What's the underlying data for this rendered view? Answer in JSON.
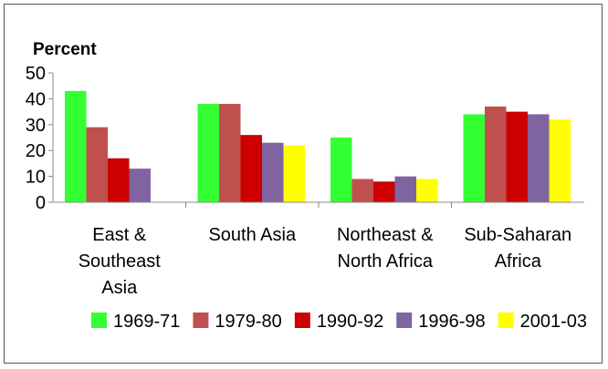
{
  "chart_data": {
    "type": "bar",
    "title": "",
    "xlabel": "",
    "ylabel": "Percent",
    "ylim": [
      0,
      50
    ],
    "yticks": [
      0,
      10,
      20,
      30,
      40,
      50
    ],
    "grid": false,
    "legend_position": "bottom",
    "categories": [
      [
        "East  &",
        "Southeast",
        "Asia"
      ],
      [
        "South Asia"
      ],
      [
        "Northeast &",
        "North Africa"
      ],
      [
        "Sub-Saharan",
        "Africa"
      ]
    ],
    "series": [
      {
        "name": "1969-71",
        "color": "#33ff33",
        "values": [
          43,
          38,
          25,
          34
        ]
      },
      {
        "name": "1979-80",
        "color": "#c0504d",
        "values": [
          29,
          38,
          9,
          37
        ]
      },
      {
        "name": "1990-92",
        "color": "#cc0000",
        "values": [
          17,
          26,
          8,
          35
        ]
      },
      {
        "name": "1996-98",
        "color": "#8064a2",
        "values": [
          13,
          23,
          10,
          34
        ]
      },
      {
        "name": "2001-03",
        "color": "#ffff00",
        "values": [
          null,
          22,
          9,
          32
        ]
      }
    ]
  }
}
